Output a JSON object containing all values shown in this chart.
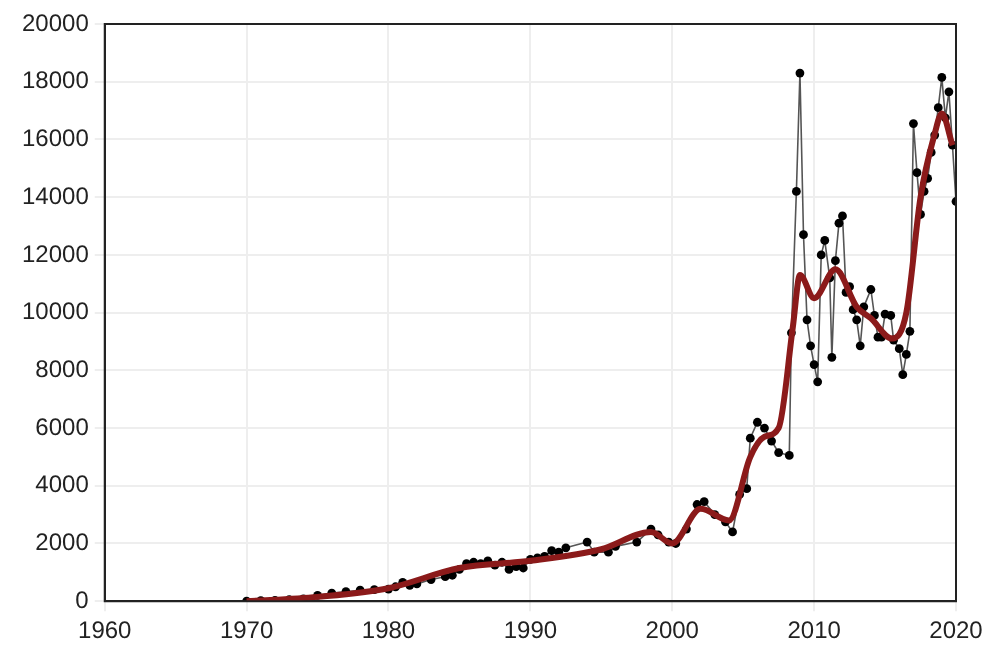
{
  "chart_data": {
    "type": "line",
    "xlim": [
      1960,
      2020
    ],
    "xticks": [
      1960,
      1970,
      1980,
      1990,
      2000,
      2010,
      2020
    ],
    "ylim": [
      0,
      20000
    ],
    "yticks": [
      0,
      2000,
      4000,
      6000,
      8000,
      10000,
      12000,
      14000,
      16000,
      18000,
      20000
    ],
    "grid": true,
    "series": [
      {
        "color": "#000000",
        "marker": "circle",
        "x": [
          1970,
          1971,
          1972,
          1973,
          1974,
          1975,
          1976,
          1977,
          1978,
          1979,
          1980,
          1980.5,
          1981,
          1981.5,
          1982,
          1983,
          1984,
          1984.5,
          1985,
          1985.5,
          1986,
          1986.5,
          1987,
          1987.5,
          1988,
          1988.5,
          1989,
          1989.5,
          1990,
          1990.5,
          1991,
          1991.5,
          1992,
          1992.5,
          1994,
          1994.5,
          1995.5,
          1996,
          1997.5,
          1998.5,
          1999,
          1999.75,
          2000.25,
          2001,
          2001.75,
          2002.25,
          2003,
          2003.75,
          2004.25,
          2004.75,
          2005.25,
          2005.5,
          2006,
          2006.5,
          2007,
          2007.5,
          2008.25,
          2008.4,
          2008.75,
          2009,
          2009.25,
          2009.5,
          2009.75,
          2010,
          2010.25,
          2010.5,
          2010.75,
          2011.1,
          2011.25,
          2011.5,
          2011.75,
          2012,
          2012.25,
          2012.5,
          2012.75,
          2013,
          2013.25,
          2013.5,
          2014,
          2014.25,
          2014.5,
          2014.75,
          2015,
          2015.4,
          2015.6,
          2016,
          2016.25,
          2016.5,
          2016.75,
          2017,
          2017.25,
          2017.5,
          2017.75,
          2018,
          2018.25,
          2018.5,
          2018.75,
          2019,
          2019.25,
          2019.5,
          2019.75,
          2020
        ],
        "values": [
          0,
          20,
          30,
          50,
          80,
          200,
          280,
          330,
          380,
          400,
          420,
          500,
          650,
          550,
          600,
          750,
          850,
          900,
          1100,
          1300,
          1350,
          1300,
          1400,
          1250,
          1350,
          1100,
          1200,
          1150,
          1450,
          1500,
          1550,
          1750,
          1700,
          1850,
          2050,
          1700,
          1700,
          1900,
          2050,
          2500,
          2300,
          2050,
          2000,
          2500,
          3350,
          3450,
          3000,
          2750,
          2400,
          3700,
          3900,
          5650,
          6200,
          6000,
          5550,
          5150,
          5050,
          9300,
          14200,
          18300,
          12700,
          9750,
          8850,
          8200,
          7600,
          12000,
          12500,
          11200,
          8450,
          11800,
          13100,
          13350,
          10700,
          10900,
          10100,
          9750,
          8850,
          10200,
          10800,
          9900,
          9150,
          9150,
          9950,
          9900,
          9050,
          8750,
          7850,
          8550,
          9350,
          16550,
          14850,
          13400,
          14200,
          14650,
          15550,
          16150,
          17100,
          18150,
          16750,
          17650,
          15800,
          13850
        ]
      },
      {
        "color": "#8b1a1a",
        "marker": "none",
        "x": [
          1970,
          1975,
          1980,
          1985,
          1990,
          1995,
          1998.5,
          2000,
          2002,
          2004,
          2005.5,
          2006.5,
          2007.5,
          2008.5,
          2009,
          2010,
          2011.5,
          2013,
          2014,
          2015.5,
          2016.5,
          2017.5,
          2018.5,
          2019,
          2019.75
        ],
        "values": [
          0,
          150,
          450,
          1150,
          1400,
          1800,
          2400,
          2000,
          3200,
          2800,
          5000,
          5700,
          6000,
          9500,
          11300,
          10500,
          11500,
          10200,
          9800,
          9100,
          10000,
          14000,
          16200,
          16900,
          15800
        ]
      }
    ]
  }
}
